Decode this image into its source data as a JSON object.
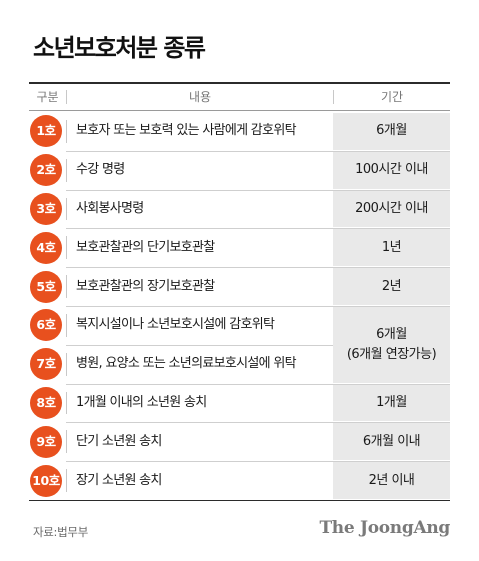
{
  "title": "소년보호처분 종류",
  "headers": {
    "category": "구분",
    "content": "내용",
    "period": "기간"
  },
  "rows": [
    {
      "badge": "1호",
      "content": "보호자 또는 보호력 있는 사람에게 감호위탁"
    },
    {
      "badge": "2호",
      "content": "수강 명령"
    },
    {
      "badge": "3호",
      "content": "사회봉사명령"
    },
    {
      "badge": "4호",
      "content": "보호관찰관의 단기보호관찰"
    },
    {
      "badge": "5호",
      "content": "보호관찰관의 장기보호관찰"
    },
    {
      "badge": "6호",
      "content": "복지시설이나 소년보호시설에 감호위탁"
    },
    {
      "badge": "7호",
      "content": "병원, 요양소 또는 소년의료보호시설에 위탁"
    },
    {
      "badge": "8호",
      "content": "1개월 이내의 소년원 송치"
    },
    {
      "badge": "9호",
      "content": "단기 소년원 송치"
    },
    {
      "badge": "10호",
      "content": "장기 소년원 송치"
    }
  ],
  "periods": [
    {
      "line1": "6개월",
      "line2": ""
    },
    {
      "line1": "100시간 이내",
      "line2": ""
    },
    {
      "line1": "200시간 이내",
      "line2": ""
    },
    {
      "line1": "1년",
      "line2": ""
    },
    {
      "line1": "2년",
      "line2": ""
    },
    {
      "line1": "6개월",
      "line2": "(6개월 연장가능)"
    },
    {
      "line1": "1개월",
      "line2": ""
    },
    {
      "line1": "6개월 이내",
      "line2": ""
    },
    {
      "line1": "2년 이내",
      "line2": ""
    }
  ],
  "source": "자료:법무부",
  "brand": "The JoongAng",
  "colors": {
    "badge": "#e8501e",
    "period_bg": "#e9e9e9"
  }
}
